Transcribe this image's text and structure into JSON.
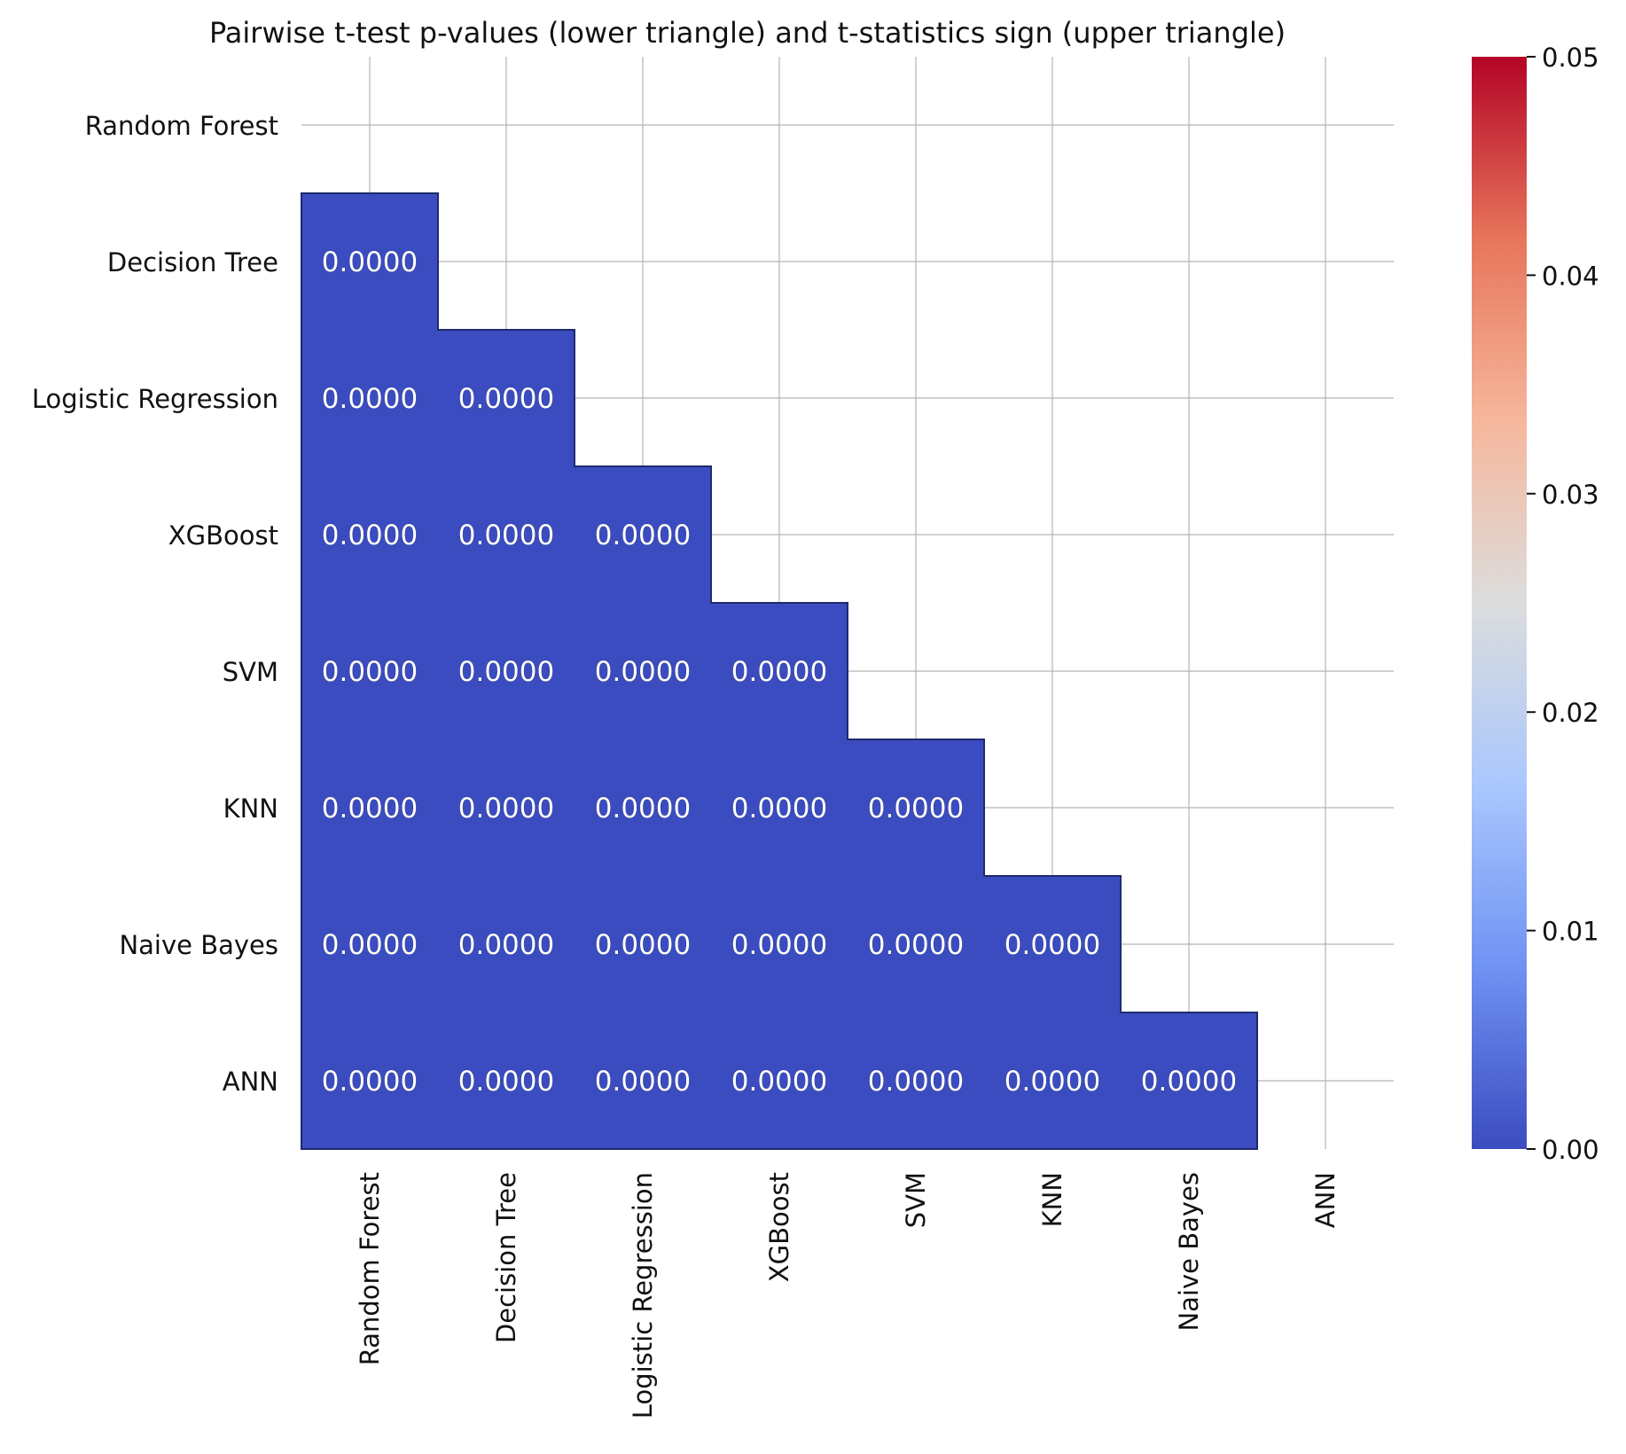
{
  "chart_data": {
    "type": "heatmap",
    "title": "Pairwise t-test p-values (lower triangle) and t-statistics sign (upper triangle)",
    "row_labels": [
      "Random Forest",
      "Decision Tree",
      "Logistic Regression",
      "XGBoost",
      "SVM",
      "KNN",
      "Naive Bayes",
      "ANN"
    ],
    "col_labels": [
      "Random Forest",
      "Decision Tree",
      "Logistic Regression",
      "XGBoost",
      "SVM",
      "KNN",
      "Naive Bayes",
      "ANN"
    ],
    "values": [
      [
        null,
        null,
        null,
        null,
        null,
        null,
        null,
        null
      ],
      [
        0.0,
        null,
        null,
        null,
        null,
        null,
        null,
        null
      ],
      [
        0.0,
        0.0,
        null,
        null,
        null,
        null,
        null,
        null
      ],
      [
        0.0,
        0.0,
        0.0,
        null,
        null,
        null,
        null,
        null
      ],
      [
        0.0,
        0.0,
        0.0,
        0.0,
        null,
        null,
        null,
        null
      ],
      [
        0.0,
        0.0,
        0.0,
        0.0,
        0.0,
        null,
        null,
        null
      ],
      [
        0.0,
        0.0,
        0.0,
        0.0,
        0.0,
        0.0,
        null,
        null
      ],
      [
        0.0,
        0.0,
        0.0,
        0.0,
        0.0,
        0.0,
        0.0,
        null
      ]
    ],
    "value_labels": [
      [
        null,
        null,
        null,
        null,
        null,
        null,
        null,
        null
      ],
      [
        "0.0000",
        null,
        null,
        null,
        null,
        null,
        null,
        null
      ],
      [
        "0.0000",
        "0.0000",
        null,
        null,
        null,
        null,
        null,
        null
      ],
      [
        "0.0000",
        "0.0000",
        "0.0000",
        null,
        null,
        null,
        null,
        null
      ],
      [
        "0.0000",
        "0.0000",
        "0.0000",
        "0.0000",
        null,
        null,
        null,
        null
      ],
      [
        "0.0000",
        "0.0000",
        "0.0000",
        "0.0000",
        "0.0000",
        null,
        null,
        null
      ],
      [
        "0.0000",
        "0.0000",
        "0.0000",
        "0.0000",
        "0.0000",
        "0.0000",
        null,
        null
      ],
      [
        "0.0000",
        "0.0000",
        "0.0000",
        "0.0000",
        "0.0000",
        "0.0000",
        "0.0000",
        null
      ]
    ],
    "colormap": "coolwarm",
    "colormap_stops": [
      "#3b4cc0",
      "#7092f3",
      "#aac7fd",
      "#dcdddd",
      "#f6b79c",
      "#e7755b",
      "#b40426"
    ],
    "colorbar": {
      "vmin": 0.0,
      "vmax": 0.05,
      "ticks": [
        0.0,
        0.01,
        0.02,
        0.03,
        0.04,
        0.05
      ],
      "tick_labels": [
        "0.00",
        "0.01",
        "0.02",
        "0.03",
        "0.04",
        "0.05"
      ]
    },
    "grid": true,
    "x_tick_rotation": "vertical",
    "cell_edge_color": "#1f2a6e",
    "annotation_color": "#ffffff"
  }
}
